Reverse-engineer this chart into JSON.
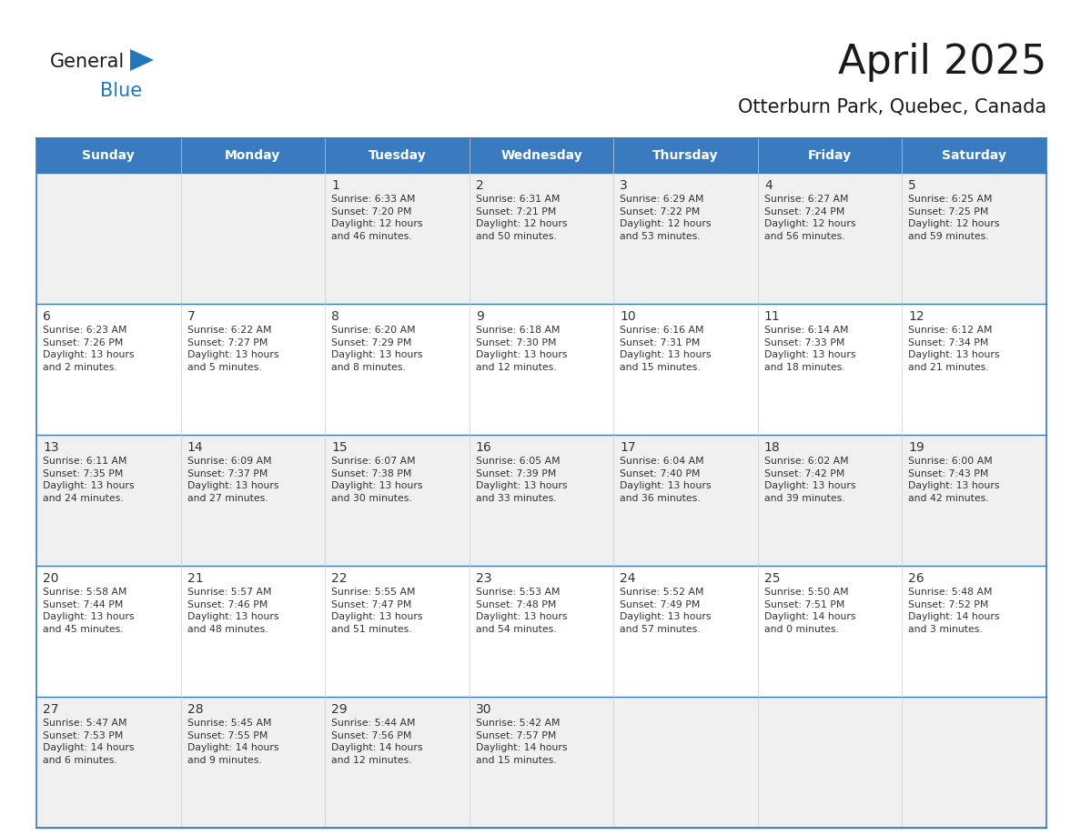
{
  "title": "April 2025",
  "subtitle": "Otterburn Park, Quebec, Canada",
  "days_of_week": [
    "Sunday",
    "Monday",
    "Tuesday",
    "Wednesday",
    "Thursday",
    "Friday",
    "Saturday"
  ],
  "header_bg": "#3a7abf",
  "header_text": "#ffffff",
  "row_bg_odd": "#f0f0f0",
  "row_bg_even": "#ffffff",
  "cell_text": "#333333",
  "border_color": "#3a7abf",
  "calendar_data": [
    [
      {
        "day": "",
        "info": ""
      },
      {
        "day": "",
        "info": ""
      },
      {
        "day": "1",
        "info": "Sunrise: 6:33 AM\nSunset: 7:20 PM\nDaylight: 12 hours\nand 46 minutes."
      },
      {
        "day": "2",
        "info": "Sunrise: 6:31 AM\nSunset: 7:21 PM\nDaylight: 12 hours\nand 50 minutes."
      },
      {
        "day": "3",
        "info": "Sunrise: 6:29 AM\nSunset: 7:22 PM\nDaylight: 12 hours\nand 53 minutes."
      },
      {
        "day": "4",
        "info": "Sunrise: 6:27 AM\nSunset: 7:24 PM\nDaylight: 12 hours\nand 56 minutes."
      },
      {
        "day": "5",
        "info": "Sunrise: 6:25 AM\nSunset: 7:25 PM\nDaylight: 12 hours\nand 59 minutes."
      }
    ],
    [
      {
        "day": "6",
        "info": "Sunrise: 6:23 AM\nSunset: 7:26 PM\nDaylight: 13 hours\nand 2 minutes."
      },
      {
        "day": "7",
        "info": "Sunrise: 6:22 AM\nSunset: 7:27 PM\nDaylight: 13 hours\nand 5 minutes."
      },
      {
        "day": "8",
        "info": "Sunrise: 6:20 AM\nSunset: 7:29 PM\nDaylight: 13 hours\nand 8 minutes."
      },
      {
        "day": "9",
        "info": "Sunrise: 6:18 AM\nSunset: 7:30 PM\nDaylight: 13 hours\nand 12 minutes."
      },
      {
        "day": "10",
        "info": "Sunrise: 6:16 AM\nSunset: 7:31 PM\nDaylight: 13 hours\nand 15 minutes."
      },
      {
        "day": "11",
        "info": "Sunrise: 6:14 AM\nSunset: 7:33 PM\nDaylight: 13 hours\nand 18 minutes."
      },
      {
        "day": "12",
        "info": "Sunrise: 6:12 AM\nSunset: 7:34 PM\nDaylight: 13 hours\nand 21 minutes."
      }
    ],
    [
      {
        "day": "13",
        "info": "Sunrise: 6:11 AM\nSunset: 7:35 PM\nDaylight: 13 hours\nand 24 minutes."
      },
      {
        "day": "14",
        "info": "Sunrise: 6:09 AM\nSunset: 7:37 PM\nDaylight: 13 hours\nand 27 minutes."
      },
      {
        "day": "15",
        "info": "Sunrise: 6:07 AM\nSunset: 7:38 PM\nDaylight: 13 hours\nand 30 minutes."
      },
      {
        "day": "16",
        "info": "Sunrise: 6:05 AM\nSunset: 7:39 PM\nDaylight: 13 hours\nand 33 minutes."
      },
      {
        "day": "17",
        "info": "Sunrise: 6:04 AM\nSunset: 7:40 PM\nDaylight: 13 hours\nand 36 minutes."
      },
      {
        "day": "18",
        "info": "Sunrise: 6:02 AM\nSunset: 7:42 PM\nDaylight: 13 hours\nand 39 minutes."
      },
      {
        "day": "19",
        "info": "Sunrise: 6:00 AM\nSunset: 7:43 PM\nDaylight: 13 hours\nand 42 minutes."
      }
    ],
    [
      {
        "day": "20",
        "info": "Sunrise: 5:58 AM\nSunset: 7:44 PM\nDaylight: 13 hours\nand 45 minutes."
      },
      {
        "day": "21",
        "info": "Sunrise: 5:57 AM\nSunset: 7:46 PM\nDaylight: 13 hours\nand 48 minutes."
      },
      {
        "day": "22",
        "info": "Sunrise: 5:55 AM\nSunset: 7:47 PM\nDaylight: 13 hours\nand 51 minutes."
      },
      {
        "day": "23",
        "info": "Sunrise: 5:53 AM\nSunset: 7:48 PM\nDaylight: 13 hours\nand 54 minutes."
      },
      {
        "day": "24",
        "info": "Sunrise: 5:52 AM\nSunset: 7:49 PM\nDaylight: 13 hours\nand 57 minutes."
      },
      {
        "day": "25",
        "info": "Sunrise: 5:50 AM\nSunset: 7:51 PM\nDaylight: 14 hours\nand 0 minutes."
      },
      {
        "day": "26",
        "info": "Sunrise: 5:48 AM\nSunset: 7:52 PM\nDaylight: 14 hours\nand 3 minutes."
      }
    ],
    [
      {
        "day": "27",
        "info": "Sunrise: 5:47 AM\nSunset: 7:53 PM\nDaylight: 14 hours\nand 6 minutes."
      },
      {
        "day": "28",
        "info": "Sunrise: 5:45 AM\nSunset: 7:55 PM\nDaylight: 14 hours\nand 9 minutes."
      },
      {
        "day": "29",
        "info": "Sunrise: 5:44 AM\nSunset: 7:56 PM\nDaylight: 14 hours\nand 12 minutes."
      },
      {
        "day": "30",
        "info": "Sunrise: 5:42 AM\nSunset: 7:57 PM\nDaylight: 14 hours\nand 15 minutes."
      },
      {
        "day": "",
        "info": ""
      },
      {
        "day": "",
        "info": ""
      },
      {
        "day": "",
        "info": ""
      }
    ]
  ],
  "logo_text_general": "General",
  "logo_text_blue": "Blue",
  "logo_color_general": "#1a1a1a",
  "logo_color_blue": "#2277bb",
  "logo_triangle_color": "#2277bb",
  "title_fontsize": 32,
  "subtitle_fontsize": 15,
  "dow_fontsize": 10,
  "day_num_fontsize": 10,
  "cell_info_fontsize": 7.8
}
